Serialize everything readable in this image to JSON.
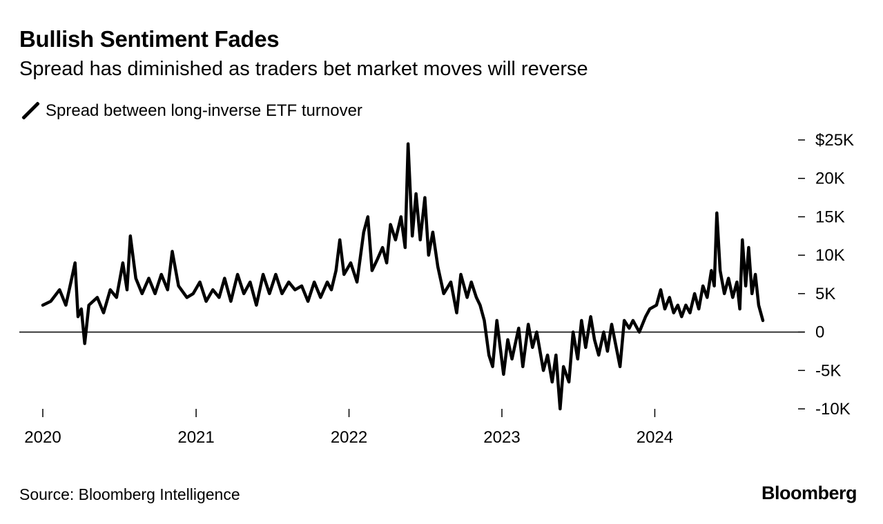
{
  "title": "Bullish Sentiment Fades",
  "subtitle": "Spread has diminished as traders bet market moves will reverse",
  "source": "Source: Bloomberg Intelligence",
  "logo": "Bloomberg",
  "colors": {
    "line": "#000000",
    "background": "#ffffff",
    "zero_line": "#000000"
  },
  "chart_data": {
    "type": "line",
    "title": "Bullish Sentiment Fades",
    "subtitle": "Spread has diminished as traders bet market moves will reverse",
    "legend_position": "top-left",
    "grid": false,
    "xlim": [
      "2020-01-01",
      "2024-09-15"
    ],
    "ylim": [
      -10000,
      25000
    ],
    "x_ticks": [
      {
        "date": "2020-01-01",
        "label": "2020"
      },
      {
        "date": "2021-01-01",
        "label": "2021"
      },
      {
        "date": "2022-01-01",
        "label": "2022"
      },
      {
        "date": "2023-01-01",
        "label": "2023"
      },
      {
        "date": "2024-01-01",
        "label": "2024"
      }
    ],
    "y_ticks": [
      {
        "value": 25000,
        "label": "$25K"
      },
      {
        "value": 20000,
        "label": "20K"
      },
      {
        "value": 15000,
        "label": "15K"
      },
      {
        "value": 10000,
        "label": "10K"
      },
      {
        "value": 5000,
        "label": "5K"
      },
      {
        "value": 0,
        "label": "0"
      },
      {
        "value": -5000,
        "label": "-5K"
      },
      {
        "value": -10000,
        "label": "-10K"
      }
    ],
    "series": [
      {
        "name": "Spread between long-inverse ETF turnover",
        "color": "#000000",
        "points": [
          [
            "2020-01-01",
            3500
          ],
          [
            "2020-01-20",
            4000
          ],
          [
            "2020-02-10",
            5500
          ],
          [
            "2020-02-25",
            3500
          ],
          [
            "2020-03-10",
            7000
          ],
          [
            "2020-03-18",
            9000
          ],
          [
            "2020-03-25",
            2000
          ],
          [
            "2020-04-02",
            3000
          ],
          [
            "2020-04-10",
            -1500
          ],
          [
            "2020-04-20",
            3500
          ],
          [
            "2020-05-10",
            4500
          ],
          [
            "2020-05-25",
            2500
          ],
          [
            "2020-06-10",
            5500
          ],
          [
            "2020-06-25",
            4500
          ],
          [
            "2020-07-10",
            9000
          ],
          [
            "2020-07-20",
            5500
          ],
          [
            "2020-07-28",
            12500
          ],
          [
            "2020-08-10",
            7000
          ],
          [
            "2020-08-25",
            5000
          ],
          [
            "2020-09-10",
            7000
          ],
          [
            "2020-09-25",
            5000
          ],
          [
            "2020-10-10",
            7500
          ],
          [
            "2020-10-25",
            5500
          ],
          [
            "2020-11-05",
            10500
          ],
          [
            "2020-11-20",
            6000
          ],
          [
            "2020-12-10",
            4500
          ],
          [
            "2020-12-25",
            5000
          ],
          [
            "2021-01-10",
            6500
          ],
          [
            "2021-01-25",
            4000
          ],
          [
            "2021-02-10",
            5500
          ],
          [
            "2021-02-25",
            4500
          ],
          [
            "2021-03-10",
            7000
          ],
          [
            "2021-03-25",
            4000
          ],
          [
            "2021-04-10",
            7500
          ],
          [
            "2021-04-25",
            5000
          ],
          [
            "2021-05-10",
            6500
          ],
          [
            "2021-05-25",
            3500
          ],
          [
            "2021-06-10",
            7500
          ],
          [
            "2021-06-25",
            5000
          ],
          [
            "2021-07-10",
            7500
          ],
          [
            "2021-07-25",
            5000
          ],
          [
            "2021-08-10",
            6500
          ],
          [
            "2021-08-25",
            5500
          ],
          [
            "2021-09-10",
            6000
          ],
          [
            "2021-09-25",
            4000
          ],
          [
            "2021-10-10",
            6500
          ],
          [
            "2021-10-25",
            4500
          ],
          [
            "2021-11-10",
            6500
          ],
          [
            "2021-11-20",
            5500
          ],
          [
            "2021-12-01",
            8000
          ],
          [
            "2021-12-10",
            12000
          ],
          [
            "2021-12-20",
            7500
          ],
          [
            "2022-01-05",
            9000
          ],
          [
            "2022-01-20",
            6500
          ],
          [
            "2022-02-05",
            13000
          ],
          [
            "2022-02-15",
            15000
          ],
          [
            "2022-02-25",
            8000
          ],
          [
            "2022-03-10",
            9500
          ],
          [
            "2022-03-22",
            11000
          ],
          [
            "2022-04-01",
            9000
          ],
          [
            "2022-04-10",
            14000
          ],
          [
            "2022-04-22",
            12000
          ],
          [
            "2022-05-05",
            15000
          ],
          [
            "2022-05-15",
            11000
          ],
          [
            "2022-05-22",
            24500
          ],
          [
            "2022-06-01",
            12500
          ],
          [
            "2022-06-10",
            18000
          ],
          [
            "2022-06-20",
            12000
          ],
          [
            "2022-07-01",
            17500
          ],
          [
            "2022-07-10",
            10000
          ],
          [
            "2022-07-20",
            13000
          ],
          [
            "2022-08-01",
            8500
          ],
          [
            "2022-08-15",
            5000
          ],
          [
            "2022-09-01",
            6500
          ],
          [
            "2022-09-15",
            2500
          ],
          [
            "2022-09-25",
            7500
          ],
          [
            "2022-10-10",
            4500
          ],
          [
            "2022-10-20",
            6500
          ],
          [
            "2022-11-01",
            4500
          ],
          [
            "2022-11-10",
            3500
          ],
          [
            "2022-11-20",
            1500
          ],
          [
            "2022-12-01",
            -3000
          ],
          [
            "2022-12-10",
            -4500
          ],
          [
            "2022-12-20",
            1500
          ],
          [
            "2023-01-05",
            -5500
          ],
          [
            "2023-01-15",
            -1000
          ],
          [
            "2023-01-25",
            -3500
          ],
          [
            "2023-02-10",
            500
          ],
          [
            "2023-02-20",
            -4500
          ],
          [
            "2023-03-05",
            1000
          ],
          [
            "2023-03-15",
            -2000
          ],
          [
            "2023-03-25",
            0
          ],
          [
            "2023-04-10",
            -5000
          ],
          [
            "2023-04-20",
            -3000
          ],
          [
            "2023-05-01",
            -6500
          ],
          [
            "2023-05-10",
            -3000
          ],
          [
            "2023-05-20",
            -10000
          ],
          [
            "2023-05-28",
            -4500
          ],
          [
            "2023-06-10",
            -6500
          ],
          [
            "2023-06-20",
            0
          ],
          [
            "2023-07-01",
            -3500
          ],
          [
            "2023-07-10",
            1500
          ],
          [
            "2023-07-20",
            -2000
          ],
          [
            "2023-08-01",
            2000
          ],
          [
            "2023-08-10",
            -1000
          ],
          [
            "2023-08-20",
            -3000
          ],
          [
            "2023-09-01",
            0
          ],
          [
            "2023-09-10",
            -2500
          ],
          [
            "2023-09-20",
            1000
          ],
          [
            "2023-10-01",
            -2000
          ],
          [
            "2023-10-10",
            -4500
          ],
          [
            "2023-10-20",
            1500
          ],
          [
            "2023-11-01",
            500
          ],
          [
            "2023-11-10",
            1500
          ],
          [
            "2023-11-25",
            0
          ],
          [
            "2023-12-10",
            2000
          ],
          [
            "2023-12-20",
            3000
          ],
          [
            "2024-01-05",
            3500
          ],
          [
            "2024-01-15",
            5500
          ],
          [
            "2024-01-25",
            3000
          ],
          [
            "2024-02-05",
            4500
          ],
          [
            "2024-02-15",
            2500
          ],
          [
            "2024-02-25",
            3500
          ],
          [
            "2024-03-05",
            2000
          ],
          [
            "2024-03-15",
            3500
          ],
          [
            "2024-03-25",
            2500
          ],
          [
            "2024-04-05",
            5000
          ],
          [
            "2024-04-15",
            3000
          ],
          [
            "2024-04-25",
            6000
          ],
          [
            "2024-05-05",
            4500
          ],
          [
            "2024-05-15",
            8000
          ],
          [
            "2024-05-22",
            6000
          ],
          [
            "2024-05-28",
            15500
          ],
          [
            "2024-06-05",
            8000
          ],
          [
            "2024-06-15",
            5000
          ],
          [
            "2024-06-25",
            7000
          ],
          [
            "2024-07-05",
            4500
          ],
          [
            "2024-07-15",
            6500
          ],
          [
            "2024-07-22",
            3000
          ],
          [
            "2024-07-28",
            12000
          ],
          [
            "2024-08-05",
            6000
          ],
          [
            "2024-08-12",
            11000
          ],
          [
            "2024-08-20",
            5000
          ],
          [
            "2024-08-28",
            7500
          ],
          [
            "2024-09-05",
            3500
          ],
          [
            "2024-09-15",
            1500
          ]
        ]
      }
    ]
  }
}
